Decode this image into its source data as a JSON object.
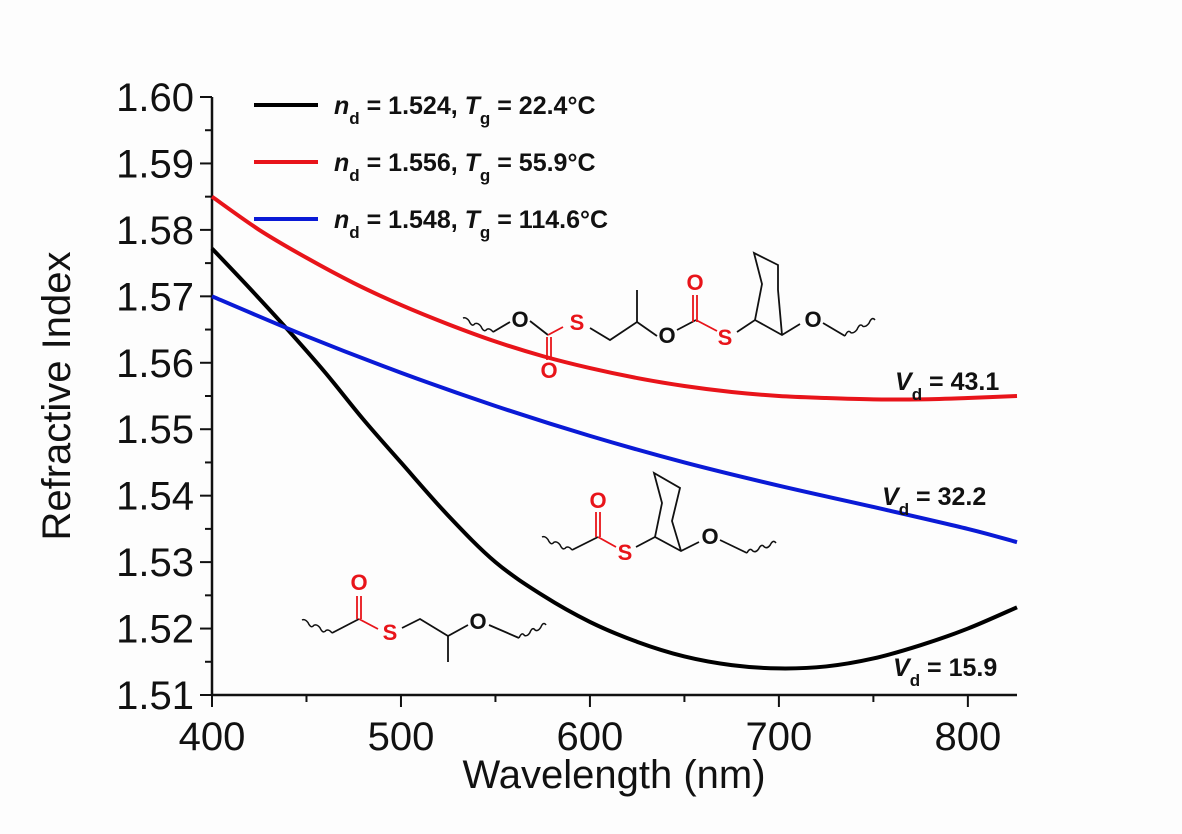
{
  "chart_data": {
    "type": "line",
    "title": "",
    "xlabel": "Wavelength (nm)",
    "ylabel": "Refractive Index",
    "xlim": [
      400,
      826
    ],
    "ylim": [
      1.51,
      1.6
    ],
    "xticks": [
      400,
      500,
      600,
      700,
      800
    ],
    "xtick_labels": [
      "400",
      "500",
      "600",
      "700",
      "800"
    ],
    "yticks": [
      1.51,
      1.52,
      1.53,
      1.54,
      1.55,
      1.56,
      1.57,
      1.58,
      1.59,
      1.6
    ],
    "ytick_labels": [
      "1.51",
      "1.52",
      "1.53",
      "1.54",
      "1.55",
      "1.56",
      "1.57",
      "1.58",
      "1.59",
      "1.60"
    ],
    "grid": false,
    "legend_position": "top-left",
    "series": [
      {
        "name": "n_d = 1.524, T_g = 22.4°C",
        "legend": {
          "n_value": " = 1.524, ",
          "t_value": " = 22.4°C"
        },
        "color": "#000000",
        "x": [
          400,
          420,
          440,
          460,
          480,
          500,
          525,
          550,
          575,
          600,
          625,
          650,
          675,
          700,
          725,
          750,
          775,
          800,
          826
        ],
        "y": [
          1.5772,
          1.5712,
          1.565,
          1.5585,
          1.5515,
          1.545,
          1.537,
          1.53,
          1.525,
          1.521,
          1.518,
          1.5158,
          1.5145,
          1.514,
          1.5143,
          1.5155,
          1.5175,
          1.52,
          1.5232
        ],
        "annotation": {
          "symbol": "V",
          "sub": "d",
          "text": " = 15.9"
        }
      },
      {
        "name": "n_d = 1.556, T_g = 55.9°C",
        "legend": {
          "n_value": " = 1.556, ",
          "t_value": " = 55.9°C"
        },
        "color": "#e8141a",
        "x": [
          400,
          425,
          450,
          475,
          500,
          525,
          550,
          575,
          600,
          625,
          650,
          675,
          700,
          725,
          750,
          775,
          800,
          826
        ],
        "y": [
          1.585,
          1.58,
          1.5758,
          1.572,
          1.5687,
          1.5658,
          1.5632,
          1.561,
          1.5592,
          1.5577,
          1.5565,
          1.5556,
          1.555,
          1.5547,
          1.5545,
          1.5545,
          1.5547,
          1.555
        ],
        "annotation": {
          "symbol": "V",
          "sub": "d",
          "text": " = 43.1"
        }
      },
      {
        "name": "n_d = 1.548, T_g = 114.6°C",
        "legend": {
          "n_value": " = 1.548, ",
          "t_value": " = 114.6°C"
        },
        "color": "#0a1ad6",
        "x": [
          400,
          450,
          500,
          550,
          600,
          650,
          700,
          750,
          800,
          826
        ],
        "y": [
          1.57,
          1.564,
          1.5585,
          1.5535,
          1.549,
          1.545,
          1.5415,
          1.5383,
          1.535,
          1.533
        ],
        "annotation": {
          "symbol": "V",
          "sub": "d",
          "text": " = 32.2"
        }
      }
    ]
  },
  "legend_symbols": {
    "n": "n",
    "n_sub": "d",
    "t": "T",
    "t_sub": "g"
  },
  "structures": {
    "atoms": {
      "O": "O",
      "S": "S"
    }
  },
  "colors": {
    "axis": "#111111",
    "heteroatom_red": "#e8141a",
    "background": "#fdfdfd"
  }
}
